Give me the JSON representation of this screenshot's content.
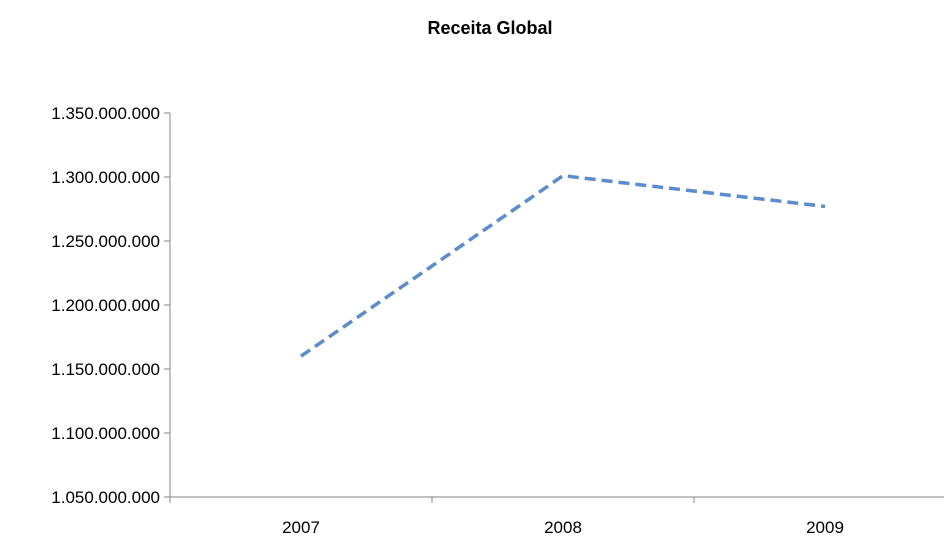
{
  "chart_data": {
    "type": "line",
    "title": "Receita Global",
    "xlabel": "",
    "ylabel": "",
    "categories": [
      "2007",
      "2008",
      "2009"
    ],
    "series": [
      {
        "values": [
          1160000000,
          1301000000,
          1277000000
        ],
        "color": "#5B8BD0",
        "line_style": "dashed"
      }
    ],
    "ylim": [
      1050000000,
      1350000000
    ],
    "yticks": [
      1050000000,
      1100000000,
      1150000000,
      1200000000,
      1250000000,
      1300000000,
      1350000000
    ],
    "ytick_labels": [
      "1.050.000.000",
      "1.100.000.000",
      "1.150.000.000",
      "1.200.000.000",
      "1.250.000.000",
      "1.300.000.000",
      "1.350.000.000"
    ],
    "grid": false,
    "legend": "none"
  }
}
